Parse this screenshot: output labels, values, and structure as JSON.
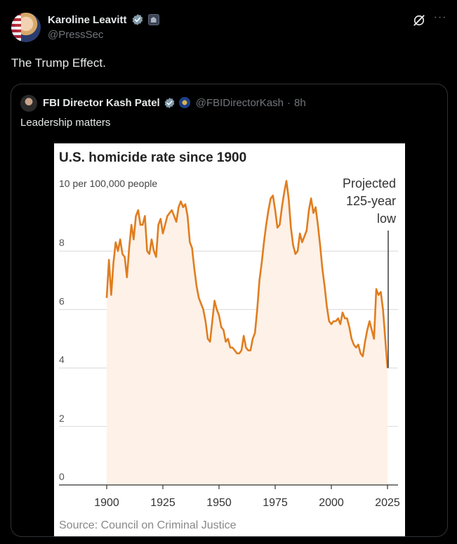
{
  "post": {
    "author_name": "Karoline Leavitt",
    "author_handle": "@PressSec",
    "text": "The Trump Effect.",
    "more_label": "···"
  },
  "quote": {
    "author_name": "FBI Director Kash Patel",
    "author_handle": "@FBIDirectorKash",
    "separator": "·",
    "time": "8h",
    "text": "Leadership matters"
  },
  "colors": {
    "accent_verified": "#1d9bf0",
    "line": "#e07d1f",
    "fill": "#fdf1e8"
  },
  "chart_data": {
    "type": "area",
    "title": "U.S. homicide rate since 1900",
    "ylabel": "10 per 100,000 people",
    "annotation": [
      "Projected",
      "125-year",
      "low"
    ],
    "source": "Source: Council on Criminal Justice",
    "xlim": [
      1900,
      2025
    ],
    "ylim": [
      0,
      10
    ],
    "yticks": [
      0,
      2,
      4,
      6,
      8
    ],
    "xticks": [
      1900,
      1925,
      1950,
      1975,
      2000,
      2025
    ],
    "x": [
      1900,
      1901,
      1902,
      1903,
      1904,
      1905,
      1906,
      1907,
      1908,
      1909,
      1910,
      1911,
      1912,
      1913,
      1914,
      1915,
      1916,
      1917,
      1918,
      1919,
      1920,
      1921,
      1922,
      1923,
      1924,
      1925,
      1926,
      1927,
      1928,
      1929,
      1930,
      1931,
      1932,
      1933,
      1934,
      1935,
      1936,
      1937,
      1938,
      1939,
      1940,
      1941,
      1942,
      1943,
      1944,
      1945,
      1946,
      1947,
      1948,
      1949,
      1950,
      1951,
      1952,
      1953,
      1954,
      1955,
      1956,
      1957,
      1958,
      1959,
      1960,
      1961,
      1962,
      1963,
      1964,
      1965,
      1966,
      1967,
      1968,
      1969,
      1970,
      1971,
      1972,
      1973,
      1974,
      1975,
      1976,
      1977,
      1978,
      1979,
      1980,
      1981,
      1982,
      1983,
      1984,
      1985,
      1986,
      1987,
      1988,
      1989,
      1990,
      1991,
      1992,
      1993,
      1994,
      1995,
      1996,
      1997,
      1998,
      1999,
      2000,
      2001,
      2002,
      2003,
      2004,
      2005,
      2006,
      2007,
      2008,
      2009,
      2010,
      2011,
      2012,
      2013,
      2014,
      2015,
      2016,
      2017,
      2018,
      2019,
      2020,
      2021,
      2022,
      2023,
      2024,
      2025
    ],
    "values": [
      6.4,
      7.7,
      6.5,
      7.6,
      8.3,
      8.0,
      8.4,
      7.9,
      7.8,
      7.1,
      8.1,
      8.9,
      8.4,
      9.2,
      9.4,
      8.9,
      8.9,
      9.2,
      8.0,
      7.9,
      8.4,
      8.0,
      7.8,
      8.9,
      9.1,
      8.6,
      8.9,
      9.2,
      9.3,
      9.4,
      9.2,
      9.0,
      9.5,
      9.7,
      9.5,
      9.6,
      9.2,
      8.3,
      8.1,
      7.4,
      6.8,
      6.4,
      6.2,
      6.0,
      5.6,
      5.0,
      4.9,
      5.6,
      6.3,
      6.0,
      5.8,
      5.4,
      5.3,
      4.9,
      5.0,
      4.7,
      4.7,
      4.6,
      4.5,
      4.5,
      4.6,
      5.1,
      4.7,
      4.6,
      4.6,
      5.0,
      5.2,
      6.0,
      7.0,
      7.6,
      8.3,
      8.9,
      9.4,
      9.8,
      9.9,
      9.4,
      8.8,
      8.9,
      9.5,
      10.0,
      10.4,
      9.8,
      8.8,
      8.2,
      7.9,
      8.0,
      8.6,
      8.3,
      8.5,
      8.7,
      9.4,
      9.8,
      9.3,
      9.5,
      8.9,
      8.2,
      7.4,
      6.8,
      6.1,
      5.6,
      5.5,
      5.6,
      5.6,
      5.7,
      5.5,
      5.9,
      5.7,
      5.7,
      5.4,
      5.0,
      4.8,
      4.7,
      4.8,
      4.5,
      4.4,
      4.9,
      5.3,
      5.6,
      5.3,
      5.0,
      6.7,
      6.5,
      6.6,
      6.0,
      5.0,
      4.0
    ]
  }
}
